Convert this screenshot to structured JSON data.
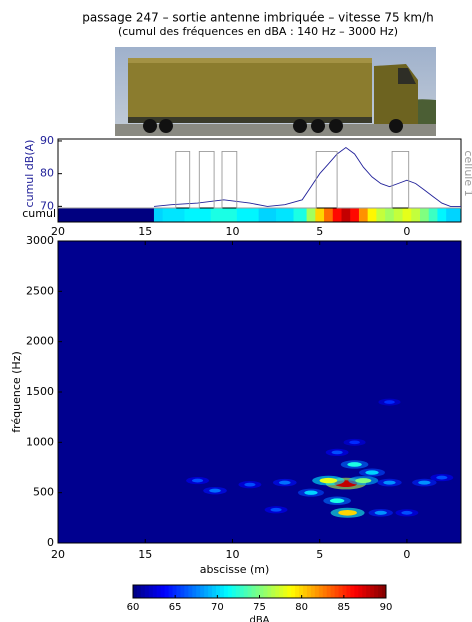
{
  "title": "passage 247 – sortie antenne imbriquée – vitesse 75 km/h",
  "subtitle": "(cumul des fréquences en dBA : 140 Hz – 3000 Hz)",
  "chart_data": [
    {
      "type": "line",
      "ylabel": "cumul dB(A)",
      "y2label": "cellule 1",
      "strip_label": "cumul",
      "xlim": [
        20,
        -3.1
      ],
      "ylim": [
        69.5,
        90.6
      ],
      "yticks": [
        70,
        80,
        90
      ],
      "y2lim": [
        0,
        1.22
      ],
      "series": [
        {
          "color": "#22229a",
          "x": [
            14.5,
            13.5,
            12,
            10.5,
            9,
            8,
            7,
            6,
            5.5,
            5,
            4.5,
            4,
            3.5,
            3,
            2.5,
            2,
            1.5,
            1,
            0.5,
            0,
            -0.5,
            -1,
            -1.5,
            -2,
            -2.5,
            -3.1
          ],
          "values": [
            70,
            70.5,
            71,
            72,
            71,
            70,
            70.5,
            72,
            76,
            80,
            83,
            86,
            88,
            86,
            82,
            79,
            77,
            76,
            77,
            78,
            77,
            75,
            73,
            71,
            70,
            70
          ]
        },
        {
          "color": "#999999",
          "axis": "y2",
          "x": [
            20,
            13.25,
            13.25,
            12.45,
            12.45,
            11.9,
            11.9,
            11.05,
            11.05,
            10.6,
            10.6,
            9.75,
            9.75,
            5.2,
            5.2,
            4.0,
            4.0,
            0.85,
            0.85,
            -0.1,
            -0.1,
            -3.1
          ],
          "values": [
            0,
            0,
            1,
            1,
            0,
            0,
            1,
            1,
            0,
            0,
            1,
            1,
            0,
            0,
            1,
            1,
            0,
            0,
            1,
            1,
            0,
            0
          ]
        }
      ]
    },
    {
      "type": "heatmap",
      "xlabel": "abscisse (m)",
      "ylabel": "fréquence (Hz)",
      "xlim": [
        20,
        -3.1
      ],
      "ylim": [
        0,
        3000
      ],
      "xticks": [
        20,
        15,
        10,
        5,
        0
      ],
      "yticks": [
        0,
        500,
        1000,
        1500,
        2000,
        2500,
        3000
      ],
      "background": "#00008f",
      "spots": {
        "x": [
          3.5,
          3.4,
          4.5,
          2.5,
          3,
          5.5,
          1,
          -1,
          -2,
          12,
          11,
          9,
          7,
          7.5,
          1.5,
          0,
          4,
          3,
          1,
          2,
          4
        ],
        "y": [
          590,
          300,
          620,
          620,
          780,
          500,
          600,
          600,
          650,
          620,
          520,
          580,
          600,
          330,
          300,
          300,
          900,
          1000,
          1400,
          700,
          420
        ],
        "values": [
          88,
          80,
          78,
          75,
          72,
          70,
          68,
          68,
          66,
          66,
          67,
          66,
          67,
          66,
          68,
          66,
          66,
          65,
          65,
          70,
          72
        ]
      },
      "clim": [
        60,
        90
      ],
      "cticks": [
        60,
        65,
        70,
        75,
        80,
        85,
        90
      ],
      "clabel": "dBA"
    }
  ]
}
